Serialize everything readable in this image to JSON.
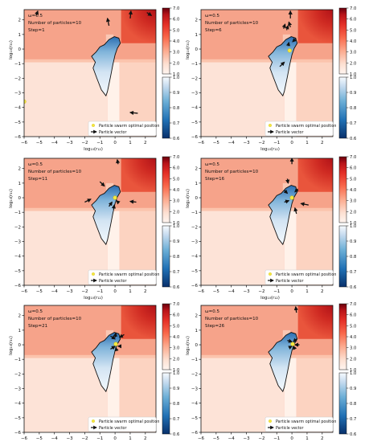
{
  "panel_stamp": {
    "omega": "ω=0.5",
    "particles": "Number of particles=10"
  },
  "panels": [
    {
      "step_text": "Step=1"
    },
    {
      "step_text": "Step=6"
    },
    {
      "step_text": "Step=11"
    },
    {
      "step_text": "Step=16"
    },
    {
      "step_text": "Step=21"
    },
    {
      "step_text": "Step=26"
    }
  ],
  "axes": {
    "xlabel": "log₁₀(r₁₂)",
    "ylabel": "log₁₀(r₂₁)",
    "xlim": [
      -6,
      2.7
    ],
    "ylim": [
      -6,
      2.7
    ],
    "xticks": [
      "−6",
      "−5",
      "−4",
      "−3",
      "−2",
      "−1",
      "0",
      "1",
      "2"
    ],
    "yticks": [
      "−6",
      "−5",
      "−4",
      "−3",
      "−2",
      "−1",
      "0",
      "1",
      "2"
    ]
  },
  "legend": {
    "optimal": "Particle swarm optimal position",
    "vector": "Particle vector"
  },
  "colorbar_red": {
    "ticks": [
      "1.0",
      "2.0",
      "3.0",
      "4.0",
      "5.0",
      "6.0",
      "7.0"
    ],
    "range": [
      1.0,
      7.0
    ],
    "colormap": "Reds"
  },
  "colorbar_blue": {
    "ticks": [
      "0.6",
      "0.7",
      "0.8",
      "0.9",
      "1.0"
    ],
    "range": [
      0.6,
      1.0
    ],
    "colormap": "Blues_r"
  },
  "chart_data": [
    {
      "type": "heatmap",
      "title": "Step=1",
      "optimum": [
        -6.0,
        -3.6
      ],
      "particles": [
        {
          "x": -5.2,
          "y": 2.3,
          "dx": 0.1,
          "dy": 0.3
        },
        {
          "x": -0.4,
          "y": 1.6,
          "dx": -0.1,
          "dy": 0.5
        },
        {
          "x": 1.0,
          "y": 2.1,
          "dx": 0.05,
          "dy": 0.5
        },
        {
          "x": 2.1,
          "y": 2.5,
          "dx": 0.3,
          "dy": -0.2
        },
        {
          "x": 1.5,
          "y": -4.4,
          "dx": -0.5,
          "dy": 0.05
        },
        {
          "x": -6.0,
          "y": -3.6,
          "dx": 0.0,
          "dy": 0.0
        }
      ]
    },
    {
      "type": "heatmap",
      "title": "Step=6",
      "optimum": [
        -0.15,
        -0.1
      ],
      "particles": [
        {
          "x": -0.55,
          "y": 1.4,
          "dx": 0.1,
          "dy": 0.3
        },
        {
          "x": -0.1,
          "y": 1.5,
          "dx": -0.1,
          "dy": 0.35
        },
        {
          "x": -0.35,
          "y": 1.3,
          "dx": 0.1,
          "dy": 0.3
        },
        {
          "x": -0.8,
          "y": -1.2,
          "dx": 0.3,
          "dy": 0.3
        },
        {
          "x": 0.25,
          "y": 0.7,
          "dx": -0.2,
          "dy": -0.2
        },
        {
          "x": -0.25,
          "y": 0.2,
          "dx": 0.05,
          "dy": 0.25
        },
        {
          "x": -0.1,
          "y": 2.1,
          "dx": 0.0,
          "dy": 0.5
        }
      ]
    },
    {
      "type": "heatmap",
      "title": "Step=11",
      "optimum": [
        0.0,
        0.0
      ],
      "particles": [
        {
          "x": -1.0,
          "y": 1.1,
          "dx": 0.3,
          "dy": -0.3
        },
        {
          "x": 0.2,
          "y": 2.3,
          "dx": -0.05,
          "dy": 0.3
        },
        {
          "x": -2.0,
          "y": -0.3,
          "dx": 0.4,
          "dy": 0.2
        },
        {
          "x": 1.4,
          "y": -0.3,
          "dx": -0.4,
          "dy": 0.05
        },
        {
          "x": -0.4,
          "y": -0.6,
          "dx": 0.2,
          "dy": 0.3
        },
        {
          "x": 0.2,
          "y": -0.3,
          "dx": -0.1,
          "dy": 0.1
        },
        {
          "x": -0.1,
          "y": -0.8,
          "dx": 0.05,
          "dy": 0.3
        }
      ]
    },
    {
      "type": "heatmap",
      "title": "Step=16",
      "optimum": [
        0.0,
        0.0
      ],
      "particles": [
        {
          "x": -0.3,
          "y": 1.3,
          "dx": 0.05,
          "dy": -0.3
        },
        {
          "x": 0.0,
          "y": 2.3,
          "dx": 0.0,
          "dy": 0.4
        },
        {
          "x": -0.5,
          "y": 0.5,
          "dx": 0.2,
          "dy": -0.2
        },
        {
          "x": 0.4,
          "y": 0.6,
          "dx": -0.2,
          "dy": -0.2
        },
        {
          "x": 1.1,
          "y": -0.5,
          "dx": -0.5,
          "dy": 0.1
        },
        {
          "x": 0.3,
          "y": -1.1,
          "dx": -0.1,
          "dy": 0.4
        },
        {
          "x": -0.5,
          "y": -0.3,
          "dx": 0.3,
          "dy": 0.1
        }
      ]
    },
    {
      "type": "heatmap",
      "title": "Step=21",
      "optimum": [
        0.05,
        0.05
      ],
      "particles": [
        {
          "x": 0.0,
          "y": 0.5,
          "dx": 0.05,
          "dy": 0.3
        },
        {
          "x": 0.6,
          "y": 0.7,
          "dx": -0.3,
          "dy": -0.2
        },
        {
          "x": -0.3,
          "y": 0.6,
          "dx": 0.3,
          "dy": -0.2
        },
        {
          "x": 0.4,
          "y": -0.1,
          "dx": -0.2,
          "dy": 0.0
        },
        {
          "x": -0.3,
          "y": -0.3,
          "dx": 0.3,
          "dy": 0.2
        },
        {
          "x": 0.1,
          "y": -0.4,
          "dx": -0.05,
          "dy": 0.2
        }
      ]
    },
    {
      "type": "heatmap",
      "title": "Step=26",
      "optimum": [
        0.05,
        0.05
      ],
      "particles": [
        {
          "x": 0.3,
          "y": 2.2,
          "dx": -0.05,
          "dy": 0.4
        },
        {
          "x": 0.3,
          "y": 0.4,
          "dx": -0.2,
          "dy": -0.2
        },
        {
          "x": -0.3,
          "y": 0.3,
          "dx": 0.3,
          "dy": -0.1
        },
        {
          "x": 0.5,
          "y": 0.0,
          "dx": -0.3,
          "dy": 0.0
        },
        {
          "x": 0.2,
          "y": -0.3,
          "dx": -0.1,
          "dy": 0.2
        },
        {
          "x": -0.2,
          "y": -0.2,
          "dx": 0.2,
          "dy": 0.1
        }
      ]
    }
  ]
}
